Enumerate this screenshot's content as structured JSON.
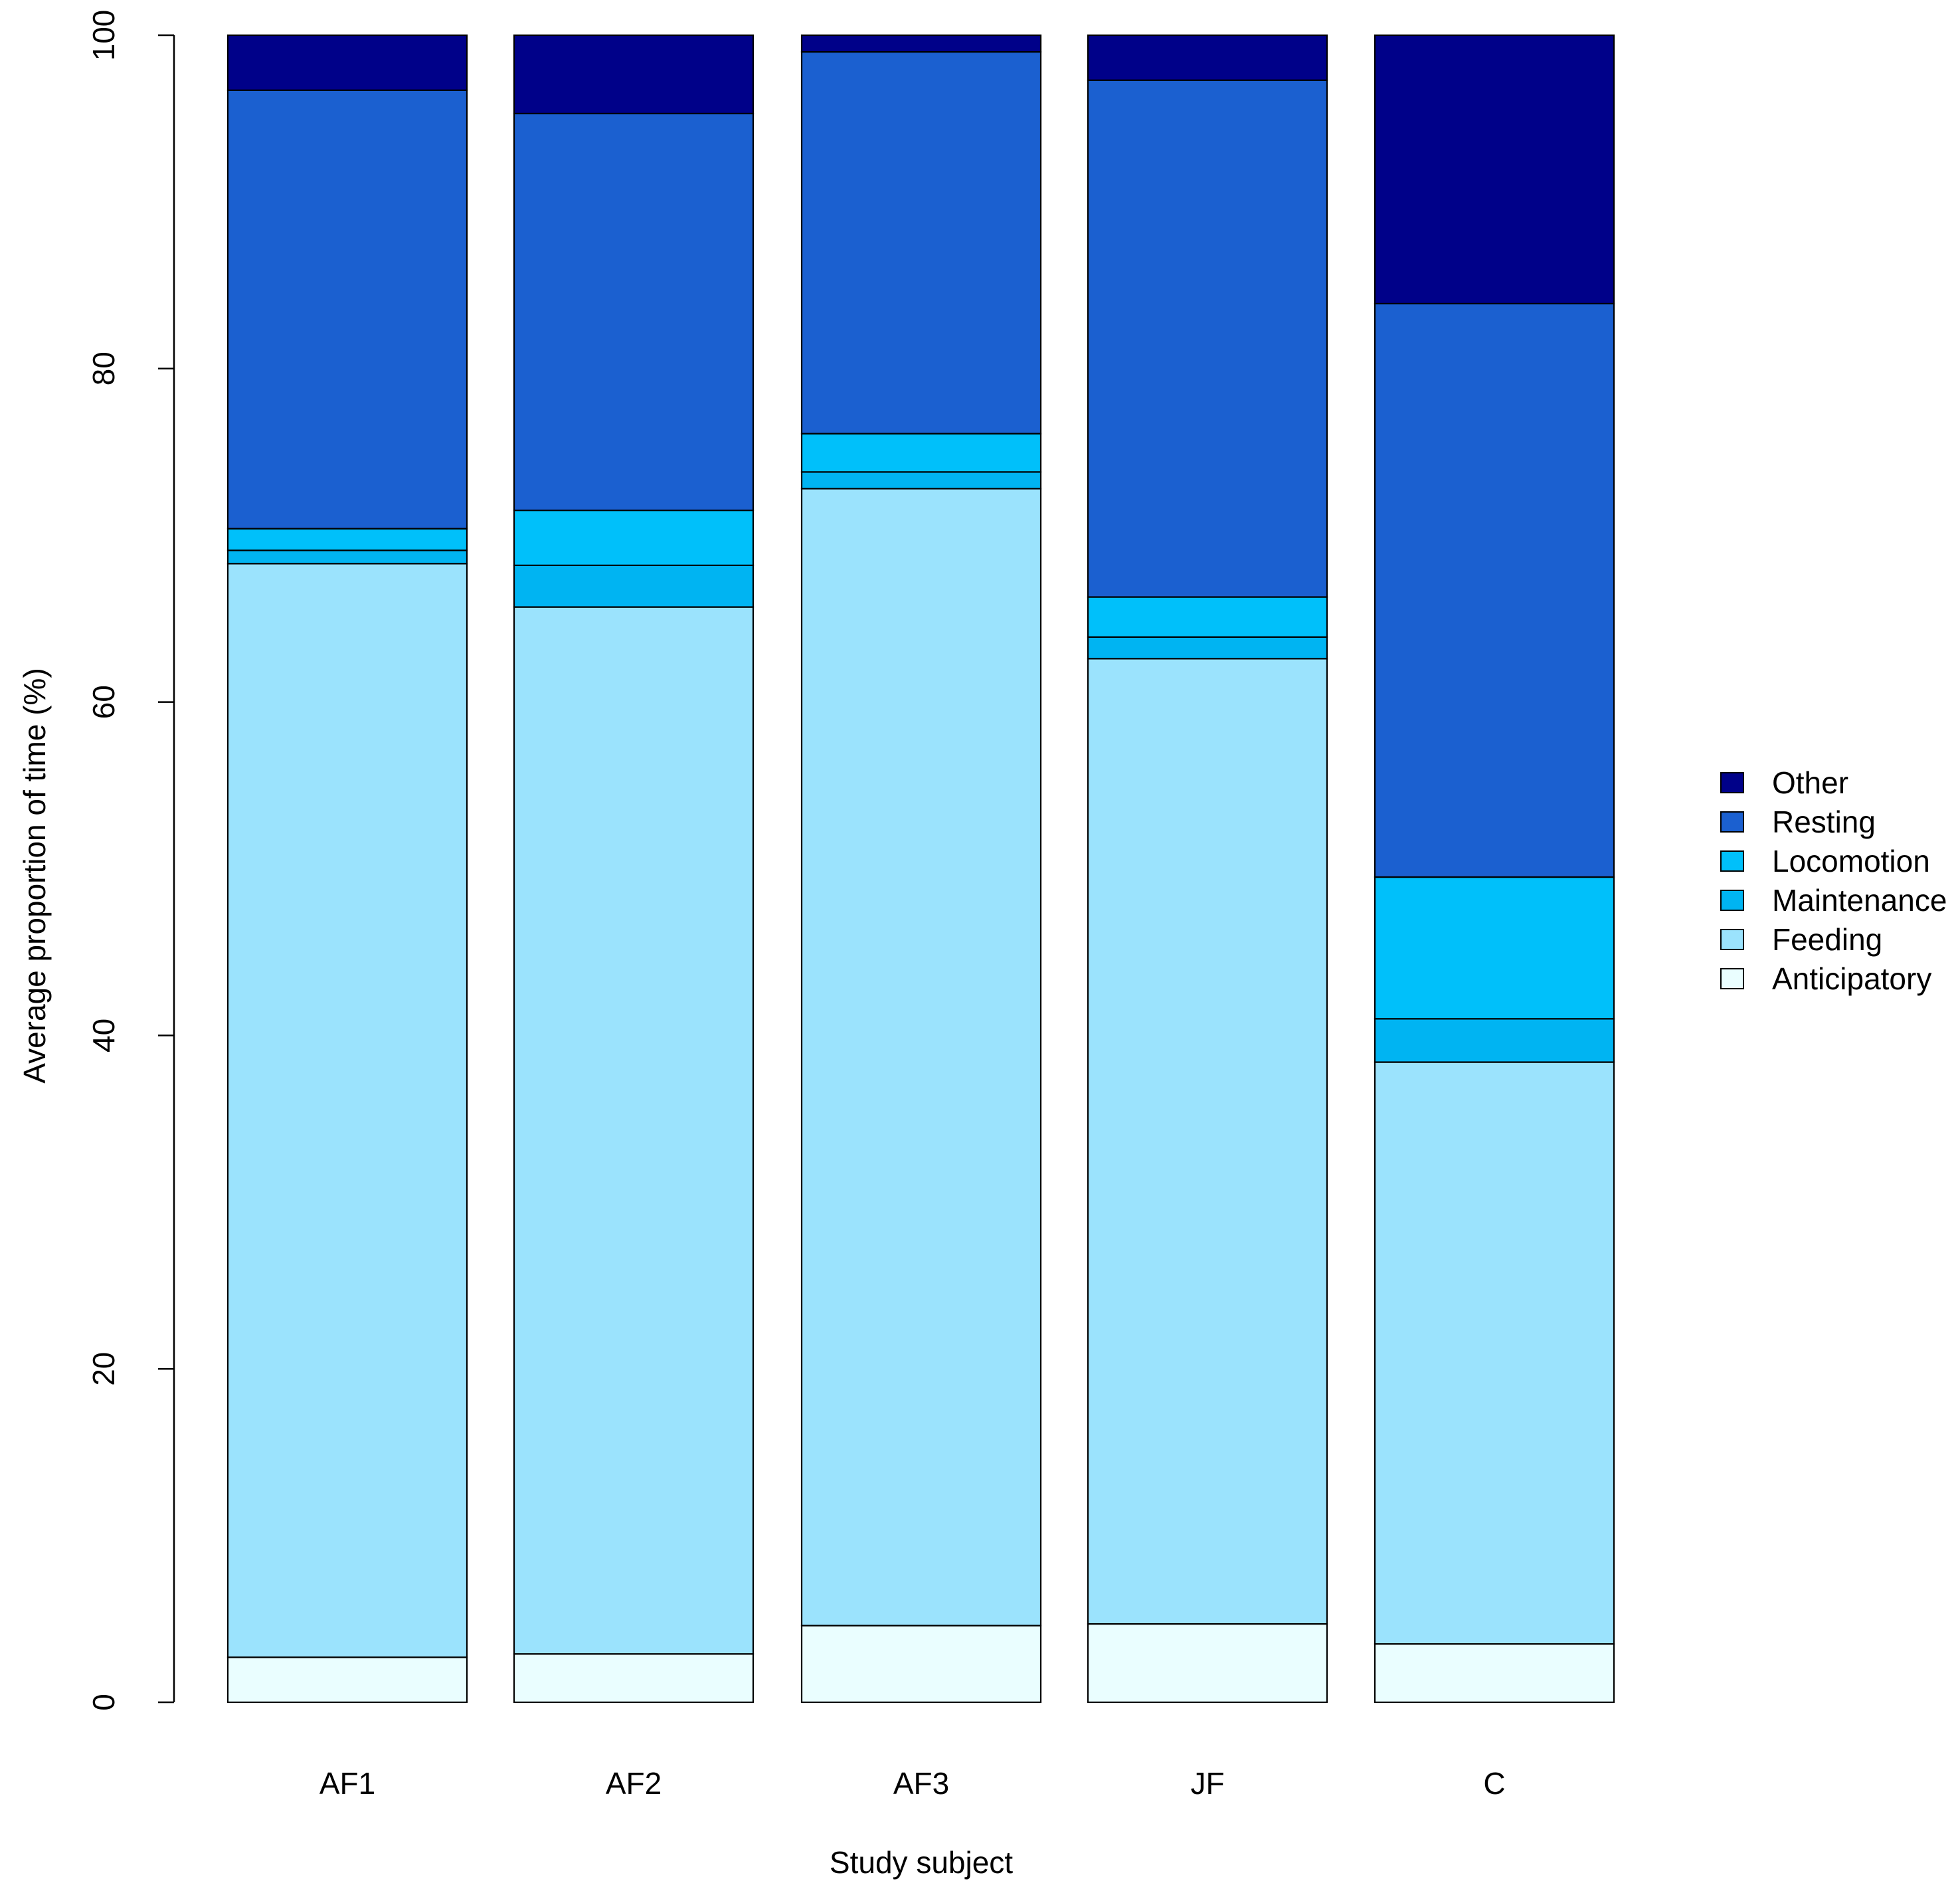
{
  "chart_data": {
    "type": "bar",
    "stacked": true,
    "title": "",
    "xlabel": "Study subject",
    "ylabel": "Average proportion of time (%)",
    "ylim": [
      0,
      100
    ],
    "yticks": [
      0,
      20,
      40,
      60,
      80,
      100
    ],
    "yticks_labels": [
      "0",
      "20",
      "40",
      "60",
      "80",
      "100"
    ],
    "grid": false,
    "legend_position": "right",
    "categories": [
      "AF1",
      "AF2",
      "AF3",
      "JF",
      "C"
    ],
    "series": [
      {
        "name": "Anticipatory",
        "color": "#EAFEFF",
        "values": [
          2.7,
          2.9,
          4.6,
          4.7,
          3.5
        ]
      },
      {
        "name": "Feeding",
        "color": "#9BE3FD",
        "values": [
          65.6,
          62.8,
          68.2,
          57.9,
          34.9
        ]
      },
      {
        "name": "Maintenance",
        "color": "#00B4F2",
        "values": [
          0.8,
          2.5,
          1.0,
          1.3,
          2.6
        ]
      },
      {
        "name": "Locomotion",
        "color": "#00C0FA",
        "values": [
          1.3,
          3.3,
          2.3,
          2.4,
          8.5
        ]
      },
      {
        "name": "Resting",
        "color": "#1B60D0",
        "values": [
          26.3,
          23.8,
          22.9,
          31.0,
          34.4
        ]
      },
      {
        "name": "Other",
        "color": "#000189",
        "values": [
          3.3,
          4.7,
          1.0,
          2.7,
          16.1
        ]
      }
    ],
    "legend_order": [
      "Other",
      "Resting",
      "Locomotion",
      "Maintenance",
      "Feeding",
      "Anticipatory"
    ]
  }
}
